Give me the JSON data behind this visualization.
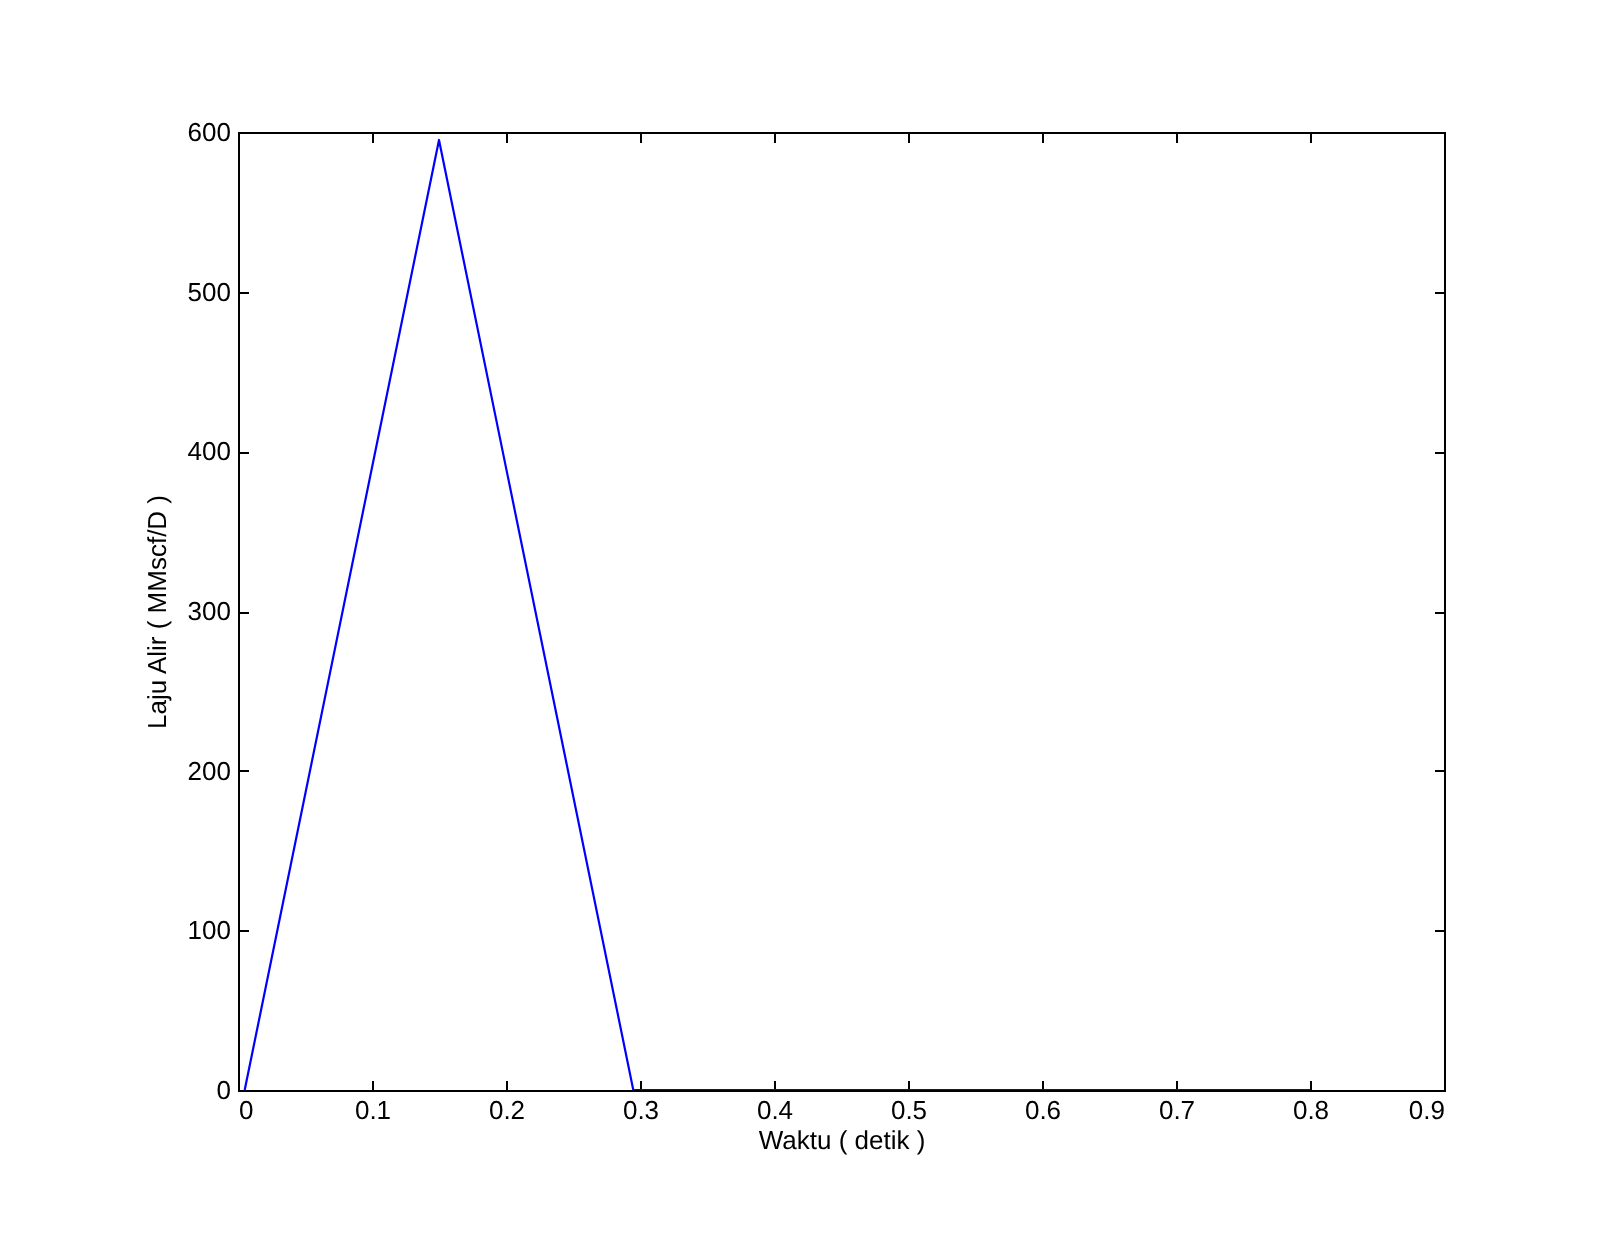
{
  "chart_data": {
    "type": "line",
    "xlabel": "Waktu ( detik )",
    "ylabel": "Laju Alir ( MMscf/D )",
    "x": [
      0.005,
      0.15,
      0.295,
      0.8
    ],
    "values": [
      0,
      595,
      0,
      0
    ],
    "color": "#0000ff",
    "xlim": [
      0,
      0.9
    ],
    "ylim": [
      0,
      600
    ],
    "xticks": [
      0,
      0.1,
      0.2,
      0.3,
      0.4,
      0.5,
      0.6,
      0.7,
      0.8,
      0.9
    ],
    "yticks": [
      0,
      100,
      200,
      300,
      400,
      500,
      600
    ],
    "grid": false
  }
}
